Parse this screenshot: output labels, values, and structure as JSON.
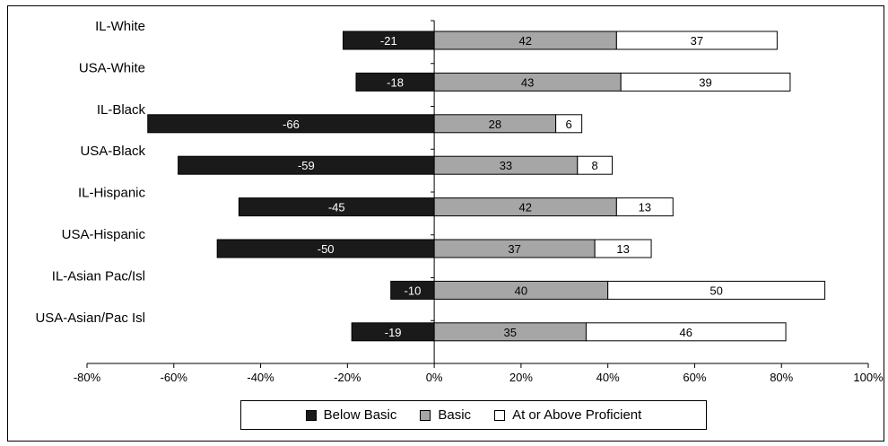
{
  "chart_data": {
    "type": "bar",
    "orientation": "horizontal",
    "stacked": "diverging",
    "categories": [
      "IL-White",
      "USA-White",
      "IL-Black",
      "USA-Black",
      "IL-Hispanic",
      "USA-Hispanic",
      "IL-Asian Pac/Isl",
      "USA-Asian/Pac Isl"
    ],
    "series": [
      {
        "name": "Below Basic",
        "values": [
          -21,
          -18,
          -66,
          -59,
          -45,
          -50,
          -10,
          -19
        ],
        "color": "#1a1a1a"
      },
      {
        "name": "Basic",
        "values": [
          42,
          43,
          28,
          33,
          42,
          37,
          40,
          35
        ],
        "color": "#a6a6a6"
      },
      {
        "name": "At or Above Proficient",
        "values": [
          37,
          39,
          6,
          8,
          13,
          13,
          50,
          46
        ],
        "color": "#ffffff"
      }
    ],
    "xlim": [
      -80,
      100
    ],
    "x_ticks": [
      "-80%",
      "-60%",
      "-40%",
      "-20%",
      "0%",
      "20%",
      "40%",
      "60%",
      "80%",
      "100%"
    ],
    "legend_position": "bottom",
    "grid": false
  }
}
